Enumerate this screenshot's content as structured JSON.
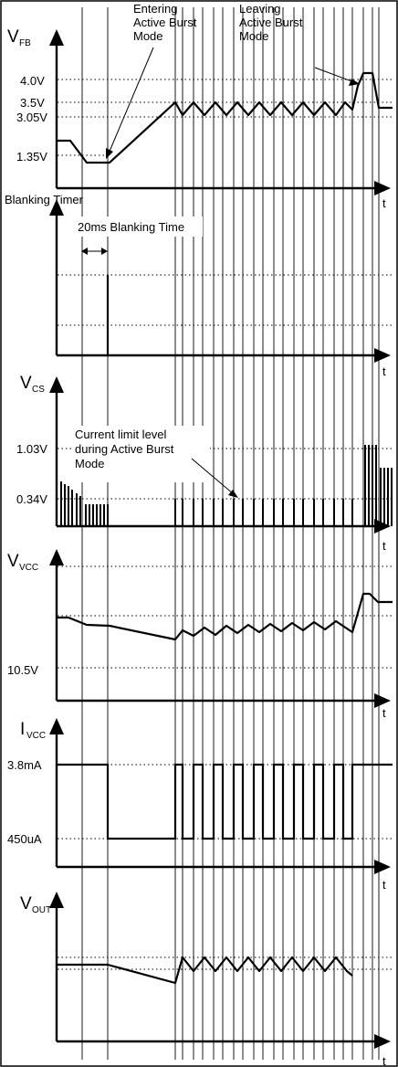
{
  "panels": {
    "vfb": {
      "ylabel_main": "V",
      "ylabel_sub": "FB",
      "ticks": [
        "4.0V",
        "3.5V",
        "3.05V",
        "1.35V"
      ],
      "xlabel": "t",
      "annotation_entering": [
        "Entering",
        "Active Burst",
        "Mode"
      ],
      "annotation_leaving": [
        "Leaving",
        "Active Burst",
        "Mode"
      ]
    },
    "blanking": {
      "ylabel": "Blanking Timer",
      "annotation": "20ms Blanking Time",
      "xlabel": "t"
    },
    "vcs": {
      "ylabel_main": "V",
      "ylabel_sub": "CS",
      "ticks": [
        "1.03V",
        "0.34V"
      ],
      "annotation": [
        "Current limit level",
        "during Active Burst",
        "Mode"
      ],
      "xlabel": "t"
    },
    "vvcc": {
      "ylabel_main": "V",
      "ylabel_sub": "VCC",
      "ticks": [
        "10.5V"
      ],
      "xlabel": "t"
    },
    "ivcc": {
      "ylabel_main": "I",
      "ylabel_sub": "VCC",
      "ticks": [
        "3.8mA",
        "450uA"
      ],
      "xlabel": "t"
    },
    "vout": {
      "ylabel_main": "V",
      "ylabel_sub": "OUT",
      "xlabel": "t"
    }
  }
}
